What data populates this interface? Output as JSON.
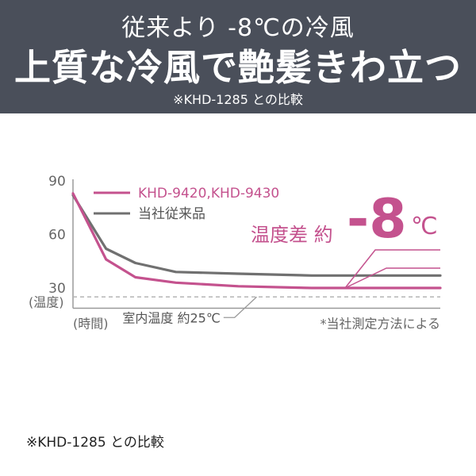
{
  "header": {
    "subtitle": "従来より -8℃の冷風",
    "title": "上質な冷風で艶髪きわ立つ",
    "note": "※KHD-1285 との比較"
  },
  "colors": {
    "header_bg": "#4a4f5a",
    "pink": "#c4528e",
    "gray": "#707070",
    "room": "#b5b5b5",
    "axis": "#9a9a9a"
  },
  "chart_data": {
    "type": "line",
    "ylabel": "(温度)",
    "xlabel": "(時間)",
    "ylim": [
      20,
      90
    ],
    "yticks": [
      90,
      60,
      30
    ],
    "xlim": [
      0,
      100
    ],
    "series": [
      {
        "name": "KHD-9420,KHD-9430",
        "color": "#c4528e",
        "x": [
          0,
          9,
          17,
          28,
          45,
          65,
          100
        ],
        "y": [
          83,
          46,
          36,
          33,
          31,
          30,
          30
        ]
      },
      {
        "name": "当社従来品",
        "color": "#707070",
        "x": [
          0,
          9,
          17,
          28,
          45,
          65,
          100
        ],
        "y": [
          82,
          52,
          44,
          39,
          38,
          37,
          37
        ]
      }
    ],
    "reference_line": {
      "label": "室内温度 約25℃",
      "y": 25
    },
    "annotation": {
      "label": "温度差 約",
      "value": "-8",
      "unit": "℃"
    },
    "source_note": "*当社測定方法による"
  },
  "footer": {
    "note": "※KHD-1285 との比較"
  }
}
